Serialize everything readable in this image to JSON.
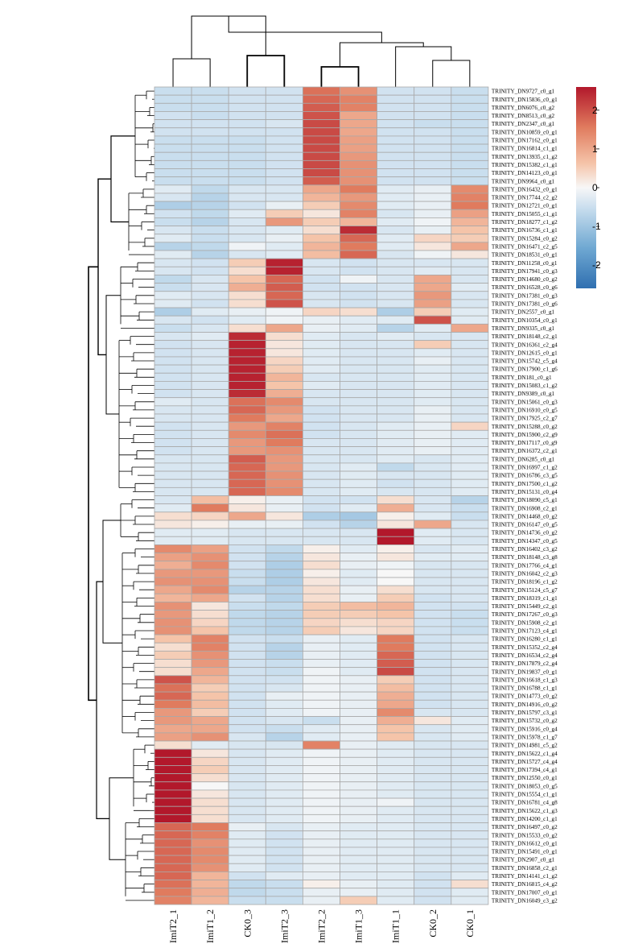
{
  "chart_data": {
    "type": "heatmap",
    "title": "",
    "columns": [
      "ImiT2_1",
      "ImiT1_2",
      "CK0_3",
      "ImiT2_3",
      "ImiT2_2",
      "ImiT1_3",
      "ImiT1_1",
      "CK0_2",
      "CK0_1"
    ],
    "rows": [
      "TRINITY_DN9727_c0_g1",
      "TRINITY_DN15836_c0_g1",
      "TRINITY_DN6076_c0_g2",
      "TRINITY_DN8513_c0_g2",
      "TRINITY_DN2347_c0_g1",
      "TRINITY_DN10859_c0_g1",
      "TRINITY_DN17162_c0_g1",
      "TRINITY_DN16814_c1_g1",
      "TRINITY_DN13935_c1_g2",
      "TRINITY_DN15382_c1_g1",
      "TRINITY_DN14123_c0_g1",
      "TRINITY_DN9964_c0_g1",
      "TRINITY_DN16432_c0_g1",
      "TRINITY_DN17744_c2_g2",
      "TRINITY_DN12721_c0_g1",
      "TRINITY_DN15055_c1_g1",
      "TRINITY_DN18277_c1_g2",
      "TRINITY_DN16736_c1_g1",
      "TRINITY_DN15284_c0_g2",
      "TRINITY_DN16471_c2_g5",
      "TRINITY_DN18531_c0_g1",
      "TRINITY_DN11258_c0_g1",
      "TRINITY_DN17941_c0_g3",
      "TRINITY_DN14680_c0_g2",
      "TRINITY_DN16528_c0_g6",
      "TRINITY_DN17381_c0_g3",
      "TRINITY_DN17381_c0_g6",
      "TRINITY_DN2557_c0_g1",
      "TRINITY_DN10354_c0_g1",
      "TRINITY_DN9335_c0_g1",
      "TRINITY_DN18148_c2_g1",
      "TRINITY_DN16361_c2_g4",
      "TRINITY_DN12615_c0_g1",
      "TRINITY_DN15742_c5_g4",
      "TRINITY_DN17900_c1_g6",
      "TRINITY_DN181_c0_g1",
      "TRINITY_DN15083_c1_g2",
      "TRINITY_DN9389_c0_g1",
      "TRINITY_DN15061_c0_g3",
      "TRINITY_DN16910_c0_g5",
      "TRINITY_DN17925_c2_g7",
      "TRINITY_DN15288_c0_g2",
      "TRINITY_DN15900_c2_g9",
      "TRINITY_DN17117_c0_g9",
      "TRINITY_DN16372_c2_g1",
      "TRINITY_DN6285_c0_g1",
      "TRINITY_DN16997_c1_g2",
      "TRINITY_DN16786_c3_g5",
      "TRINITY_DN17500_c1_g2",
      "TRINITY_DN15131_c0_g4",
      "TRINITY_DN18090_c5_g1",
      "TRINITY_DN16908_c2_g1",
      "TRINITY_DN14468_c0_g2",
      "TRINITY_DN16147_c0_g5",
      "TRINITY_DN14736_c0_g2",
      "TRINITY_DN14347_c0_g5",
      "TRINITY_DN16402_c3_g2",
      "TRINITY_DN18148_c3_g8",
      "TRINITY_DN17766_c4_g1",
      "TRINITY_DN16042_c2_g3",
      "TRINITY_DN18196_c1_g2",
      "TRINITY_DN15124_c5_g7",
      "TRINITY_DN18319_c1_g1",
      "TRINITY_DN15449_c2_g1",
      "TRINITY_DN17267_c0_g3",
      "TRINITY_DN15908_c2_g1",
      "TRINITY_DN17123_c4_g1",
      "TRINITY_DN16280_c1_g1",
      "TRINITY_DN15352_c2_g4",
      "TRINITY_DN16534_c2_g4",
      "TRINITY_DN17879_c2_g4",
      "TRINITY_DN19837_c0_g1",
      "TRINITY_DN16618_c1_g3",
      "TRINITY_DN16788_c1_g1",
      "TRINITY_DN14773_c0_g2",
      "TRINITY_DN14916_c0_g2",
      "TRINITY_DN15797_c3_g1",
      "TRINITY_DN15732_c0_g2",
      "TRINITY_DN15916_c0_g4",
      "TRINITY_DN15978_c1_g7",
      "TRINITY_DN14981_c5_g2",
      "TRINITY_DN15622_c1_g4",
      "TRINITY_DN15727_c4_g4",
      "TRINITY_DN17394_c4_g1",
      "TRINITY_DN12550_c0_g1",
      "TRINITY_DN18053_c0_g5",
      "TRINITY_DN15554_c1_g1",
      "TRINITY_DN16781_c4_g8",
      "TRINITY_DN15622_c1_g3",
      "TRINITY_DN14200_c1_g1",
      "TRINITY_DN16497_c0_g2",
      "TRINITY_DN15533_c0_g2",
      "TRINITY_DN16612_c0_g1",
      "TRINITY_DN15491_c0_g1",
      "TRINITY_DN2907_c0_g1",
      "TRINITY_DN16858_c2_g1",
      "TRINITY_DN14141_c1_g2",
      "TRINITY_DN16815_c4_g2",
      "TRINITY_DN17007_c0_g1",
      "TRINITY_DN16049_c3_g2"
    ],
    "values": [
      [
        -0.6,
        -0.6,
        -0.5,
        -0.5,
        1.7,
        1.3,
        -0.5,
        -0.5,
        -0.6
      ],
      [
        -0.6,
        -0.6,
        -0.5,
        -0.5,
        1.8,
        1.5,
        -0.5,
        -0.5,
        -0.6
      ],
      [
        -0.6,
        -0.6,
        -0.5,
        -0.5,
        1.9,
        1.5,
        -0.5,
        -0.5,
        -0.6
      ],
      [
        -0.5,
        -0.6,
        -0.5,
        -0.5,
        2.0,
        1.0,
        -0.5,
        -0.5,
        -0.6
      ],
      [
        -0.5,
        -0.5,
        -0.5,
        -0.4,
        2.1,
        1.0,
        -0.5,
        -0.6,
        -0.6
      ],
      [
        -0.5,
        -0.5,
        -0.5,
        -0.5,
        2.1,
        1.0,
        -0.5,
        -0.5,
        -0.6
      ],
      [
        -0.6,
        -0.6,
        -0.6,
        -0.5,
        2.1,
        1.1,
        -0.5,
        -0.5,
        -0.6
      ],
      [
        -0.6,
        -0.6,
        -0.6,
        -0.5,
        2.1,
        1.1,
        -0.5,
        -0.5,
        -0.6
      ],
      [
        -0.6,
        -0.6,
        -0.6,
        -0.5,
        2.1,
        1.2,
        -0.5,
        -0.5,
        -0.6
      ],
      [
        -0.6,
        -0.6,
        -0.6,
        -0.5,
        2.1,
        1.3,
        -0.5,
        -0.5,
        -0.6
      ],
      [
        -0.6,
        -0.6,
        -0.6,
        -0.5,
        2.1,
        1.3,
        -0.5,
        -0.5,
        -0.6
      ],
      [
        -0.6,
        -0.6,
        -0.6,
        -0.5,
        1.9,
        1.3,
        -0.5,
        -0.5,
        -0.6
      ],
      [
        -0.3,
        -0.7,
        -0.4,
        -0.4,
        1.0,
        1.6,
        -0.3,
        -0.2,
        1.4
      ],
      [
        -0.4,
        -0.8,
        -0.4,
        -0.4,
        0.8,
        1.2,
        -0.3,
        -0.2,
        1.5
      ],
      [
        -0.9,
        -0.8,
        -0.5,
        -0.2,
        0.5,
        1.4,
        -0.3,
        -0.2,
        1.6
      ],
      [
        -0.5,
        -0.7,
        -0.3,
        0.5,
        0.2,
        1.5,
        -0.4,
        -0.2,
        1.1
      ],
      [
        -0.6,
        -0.8,
        -0.4,
        1.2,
        0.5,
        0.8,
        -0.3,
        -0.1,
        0.8
      ],
      [
        -0.4,
        -0.6,
        -0.4,
        -0.3,
        0.3,
        2.4,
        -0.4,
        -0.2,
        0.6
      ],
      [
        -0.3,
        -0.6,
        -0.4,
        -0.2,
        0.6,
        1.8,
        -0.3,
        0.4,
        0.5
      ],
      [
        -0.8,
        -0.7,
        -0.1,
        -0.3,
        0.8,
        1.6,
        -0.3,
        0.2,
        1.0
      ],
      [
        -0.3,
        -0.8,
        -0.4,
        -0.3,
        0.7,
        1.8,
        -0.4,
        -0.1,
        0.2
      ],
      [
        -0.4,
        -0.5,
        0.5,
        2.5,
        -0.4,
        -0.5,
        -0.4,
        -0.4,
        -0.4
      ],
      [
        -0.4,
        -0.5,
        0.3,
        2.5,
        -0.4,
        -0.5,
        -0.4,
        -0.3,
        -0.4
      ],
      [
        -0.7,
        -0.4,
        0.6,
        1.8,
        -0.5,
        -0.1,
        -0.4,
        1.0,
        -0.4
      ],
      [
        -0.6,
        -0.4,
        0.9,
        1.9,
        -0.5,
        -0.5,
        -0.4,
        1.0,
        -0.3
      ],
      [
        -0.3,
        -0.4,
        0.3,
        1.8,
        -0.4,
        -0.5,
        -0.4,
        1.2,
        -0.4
      ],
      [
        -0.3,
        -0.5,
        0.3,
        2.0,
        -0.4,
        -0.5,
        -0.4,
        1.1,
        -0.4
      ],
      [
        -0.9,
        -0.3,
        -0.2,
        -0.1,
        0.4,
        0.3,
        -0.9,
        0.5,
        -0.3
      ],
      [
        -0.4,
        -0.5,
        -0.3,
        -0.1,
        -0.2,
        -0.3,
        -0.3,
        2.0,
        -0.3
      ],
      [
        -0.6,
        -0.4,
        0.3,
        1.0,
        -0.2,
        -0.3,
        -0.8,
        -0.3,
        1.0
      ],
      [
        -0.4,
        -0.3,
        2.4,
        0.3,
        -0.3,
        -0.4,
        -0.3,
        -0.4,
        -0.4
      ],
      [
        -0.5,
        -0.4,
        2.5,
        0.2,
        -0.3,
        -0.4,
        -0.4,
        0.5,
        -0.4
      ],
      [
        -0.5,
        -0.4,
        2.5,
        0.2,
        -0.3,
        -0.4,
        -0.4,
        -0.3,
        -0.4
      ],
      [
        -0.5,
        -0.4,
        2.5,
        0.4,
        -0.3,
        -0.4,
        -0.4,
        -0.2,
        -0.4
      ],
      [
        -0.5,
        -0.4,
        2.5,
        0.5,
        -0.3,
        -0.4,
        -0.4,
        -0.3,
        -0.4
      ],
      [
        -0.5,
        -0.4,
        2.5,
        0.8,
        -0.4,
        -0.4,
        -0.4,
        -0.3,
        -0.4
      ],
      [
        -0.5,
        -0.4,
        2.5,
        0.6,
        -0.3,
        -0.4,
        -0.4,
        -0.3,
        -0.4
      ],
      [
        -0.5,
        -0.4,
        2.4,
        0.9,
        -0.4,
        -0.4,
        -0.4,
        -0.3,
        -0.4
      ],
      [
        -0.3,
        -0.4,
        1.7,
        1.4,
        -0.4,
        -0.4,
        -0.4,
        -0.3,
        -0.4
      ],
      [
        -0.4,
        -0.4,
        1.8,
        1.2,
        -0.5,
        -0.4,
        -0.4,
        -0.2,
        -0.4
      ],
      [
        -0.4,
        -0.4,
        1.6,
        1.0,
        -0.5,
        -0.4,
        -0.4,
        -0.2,
        -0.4
      ],
      [
        -0.5,
        -0.4,
        1.2,
        1.5,
        -0.5,
        -0.4,
        -0.3,
        -0.2,
        0.4
      ],
      [
        -0.5,
        -0.4,
        1.4,
        1.7,
        -0.5,
        -0.4,
        -0.3,
        -0.2,
        -0.3
      ],
      [
        -0.5,
        -0.4,
        1.2,
        1.6,
        -0.4,
        -0.4,
        -0.3,
        -0.2,
        -0.3
      ],
      [
        -0.5,
        -0.4,
        1.2,
        1.3,
        -0.4,
        -0.4,
        -0.3,
        -0.2,
        -0.3
      ],
      [
        -0.4,
        -0.4,
        1.9,
        1.2,
        -0.4,
        -0.4,
        -0.3,
        -0.4,
        -0.3
      ],
      [
        -0.4,
        -0.4,
        1.8,
        1.2,
        -0.4,
        -0.3,
        -0.7,
        -0.4,
        -0.3
      ],
      [
        -0.4,
        -0.4,
        1.8,
        1.3,
        -0.4,
        -0.3,
        -0.4,
        -0.4,
        -0.3
      ],
      [
        -0.4,
        -0.4,
        1.8,
        1.3,
        -0.4,
        -0.3,
        -0.5,
        -0.4,
        -0.3
      ],
      [
        -0.4,
        -0.4,
        1.8,
        1.4,
        -0.4,
        -0.3,
        -0.4,
        -0.4,
        -0.3
      ],
      [
        -0.4,
        0.7,
        0.1,
        -0.2,
        -0.5,
        -0.5,
        0.3,
        -0.4,
        -0.8
      ],
      [
        -0.3,
        1.6,
        0.2,
        -0.2,
        -0.5,
        -0.3,
        0.9,
        -0.4,
        -0.6
      ],
      [
        0.3,
        0.4,
        1.0,
        0.2,
        -0.9,
        -1.0,
        0.1,
        -0.3,
        -0.6
      ],
      [
        0.2,
        0.1,
        -0.2,
        -0.2,
        -0.5,
        -0.8,
        0.2,
        1.0,
        -0.4
      ],
      [
        -0.3,
        -0.3,
        -0.4,
        -0.4,
        -0.4,
        -0.4,
        2.6,
        -0.3,
        -0.4
      ],
      [
        -0.3,
        -0.3,
        -0.4,
        -0.4,
        -0.4,
        -0.4,
        2.6,
        -0.3,
        -0.4
      ],
      [
        1.4,
        1.1,
        -0.5,
        -0.7,
        0.1,
        -0.3,
        0.1,
        -0.4,
        -0.3
      ],
      [
        1.1,
        1.3,
        -0.5,
        -0.8,
        0.2,
        -0.2,
        0.2,
        -0.3,
        -0.3
      ],
      [
        0.9,
        1.4,
        -0.5,
        -0.9,
        0.3,
        -0.2,
        -0.1,
        -0.4,
        -0.4
      ],
      [
        1.2,
        1.2,
        -0.6,
        -0.9,
        0.1,
        -0.3,
        0.0,
        -0.4,
        -0.4
      ],
      [
        1.3,
        1.3,
        -0.6,
        -0.9,
        0.2,
        -0.3,
        0.0,
        -0.4,
        -0.4
      ],
      [
        1.0,
        1.4,
        -0.8,
        -0.8,
        0.3,
        -0.2,
        0.3,
        -0.4,
        -0.4
      ],
      [
        0.8,
        1.0,
        -0.5,
        -0.8,
        0.3,
        -0.2,
        0.5,
        -0.5,
        -0.4
      ],
      [
        1.3,
        0.2,
        -0.6,
        -0.7,
        0.5,
        0.7,
        0.8,
        -0.5,
        -0.5
      ],
      [
        1.2,
        0.3,
        -0.7,
        -0.8,
        0.5,
        0.5,
        0.6,
        -0.5,
        -0.6
      ],
      [
        1.3,
        0.4,
        -0.7,
        -0.8,
        0.4,
        0.3,
        0.4,
        -0.5,
        -0.6
      ],
      [
        1.3,
        0.6,
        -0.7,
        -0.8,
        0.5,
        0.2,
        0.4,
        -0.5,
        -0.6
      ],
      [
        0.6,
        1.5,
        -0.5,
        -0.6,
        -0.2,
        -0.3,
        1.6,
        -0.5,
        -0.4
      ],
      [
        0.3,
        1.5,
        -0.5,
        -0.8,
        -0.2,
        -0.3,
        1.6,
        -0.5,
        -0.4
      ],
      [
        0.5,
        1.3,
        -0.5,
        -0.8,
        -0.2,
        -0.3,
        1.8,
        -0.5,
        -0.4
      ],
      [
        0.3,
        1.2,
        -0.5,
        -0.6,
        -0.2,
        -0.3,
        1.9,
        -0.5,
        -0.4
      ],
      [
        0.3,
        1.0,
        -0.5,
        -0.6,
        -0.1,
        -0.3,
        2.1,
        -0.5,
        -0.4
      ],
      [
        2.0,
        0.8,
        -0.5,
        -0.5,
        -0.1,
        -0.2,
        0.5,
        -0.5,
        -0.4
      ],
      [
        1.7,
        0.5,
        -0.5,
        -0.4,
        -0.1,
        -0.2,
        0.7,
        -0.5,
        -0.4
      ],
      [
        1.8,
        0.6,
        -0.5,
        -0.2,
        -0.1,
        -0.2,
        0.9,
        -0.5,
        -0.4
      ],
      [
        1.6,
        0.7,
        -0.5,
        -0.3,
        -0.1,
        -0.2,
        1.0,
        -0.5,
        -0.4
      ],
      [
        1.2,
        0.5,
        -0.5,
        -0.3,
        -0.1,
        -0.2,
        1.4,
        -0.4,
        -0.4
      ],
      [
        1.2,
        1.0,
        -0.5,
        -0.4,
        -0.6,
        -0.2,
        0.9,
        0.2,
        -0.3
      ],
      [
        1.0,
        1.0,
        -0.5,
        -0.6,
        -0.3,
        -0.2,
        0.6,
        -0.4,
        -0.3
      ],
      [
        1.1,
        1.3,
        -0.4,
        -0.8,
        -0.3,
        -0.2,
        0.6,
        -0.4,
        -0.3
      ],
      [
        0.3,
        -0.3,
        -0.4,
        -0.4,
        1.5,
        -0.2,
        -0.3,
        -0.4,
        -0.4
      ],
      [
        2.6,
        0.2,
        -0.4,
        -0.3,
        -0.1,
        -0.2,
        -0.3,
        -0.4,
        -0.4
      ],
      [
        2.6,
        0.4,
        -0.4,
        -0.3,
        -0.1,
        -0.2,
        -0.3,
        -0.4,
        -0.4
      ],
      [
        2.6,
        0.5,
        -0.4,
        -0.3,
        -0.1,
        -0.2,
        -0.3,
        -0.4,
        -0.4
      ],
      [
        2.6,
        0.3,
        -0.4,
        -0.3,
        -0.1,
        -0.2,
        -0.3,
        -0.4,
        -0.4
      ],
      [
        2.6,
        0.0,
        -0.4,
        -0.3,
        -0.1,
        -0.2,
        -0.3,
        -0.4,
        -0.4
      ],
      [
        2.6,
        0.2,
        -0.4,
        -0.3,
        -0.1,
        -0.2,
        -0.3,
        -0.4,
        -0.4
      ],
      [
        2.6,
        0.3,
        -0.4,
        -0.3,
        -0.1,
        -0.2,
        -0.1,
        -0.4,
        -0.4
      ],
      [
        2.6,
        0.3,
        -0.4,
        -0.3,
        -0.1,
        -0.2,
        -0.3,
        -0.4,
        -0.4
      ],
      [
        2.6,
        0.3,
        -0.4,
        -0.3,
        -0.1,
        -0.2,
        -0.3,
        -0.4,
        -0.4
      ],
      [
        1.8,
        1.6,
        -0.2,
        -0.4,
        -0.2,
        -0.3,
        -0.3,
        -0.4,
        -0.4
      ],
      [
        1.8,
        1.5,
        -0.3,
        -0.5,
        -0.2,
        -0.3,
        -0.3,
        -0.4,
        -0.4
      ],
      [
        1.8,
        1.3,
        -0.3,
        -0.5,
        -0.2,
        -0.3,
        -0.3,
        -0.4,
        -0.4
      ],
      [
        1.8,
        1.4,
        -0.3,
        -0.5,
        -0.2,
        -0.3,
        -0.3,
        -0.4,
        -0.4
      ],
      [
        1.8,
        1.4,
        -0.3,
        -0.5,
        -0.2,
        -0.3,
        -0.3,
        -0.4,
        -0.4
      ],
      [
        1.8,
        1.3,
        -0.3,
        -0.5,
        -0.2,
        -0.3,
        -0.3,
        -0.4,
        -0.4
      ],
      [
        1.8,
        0.8,
        -0.5,
        -0.3,
        -0.2,
        -0.3,
        -0.3,
        -0.5,
        -0.3
      ],
      [
        1.7,
        0.8,
        -0.7,
        -0.6,
        0.1,
        -0.2,
        -0.3,
        -0.5,
        0.3
      ],
      [
        1.6,
        0.9,
        -0.7,
        -0.6,
        -0.2,
        -0.2,
        -0.3,
        -0.5,
        -0.3
      ],
      [
        1.5,
        0.8,
        -0.6,
        -0.6,
        -0.2,
        0.5,
        -0.3,
        -0.5,
        -0.3
      ]
    ],
    "color_scale": {
      "min": -2.6,
      "max": 2.6,
      "low_color": "#3c7ab8",
      "mid_color": "#f7f7f7",
      "high_color": "#b2182b",
      "ticks": [
        {
          "value": 2,
          "label": "2"
        },
        {
          "value": 1,
          "label": "1"
        },
        {
          "value": 0,
          "label": "0"
        },
        {
          "value": -1,
          "label": "-1"
        },
        {
          "value": -2,
          "label": "-2"
        }
      ]
    },
    "column_dendrogram": true,
    "row_dendrogram": true,
    "legend_position": "top-right"
  }
}
